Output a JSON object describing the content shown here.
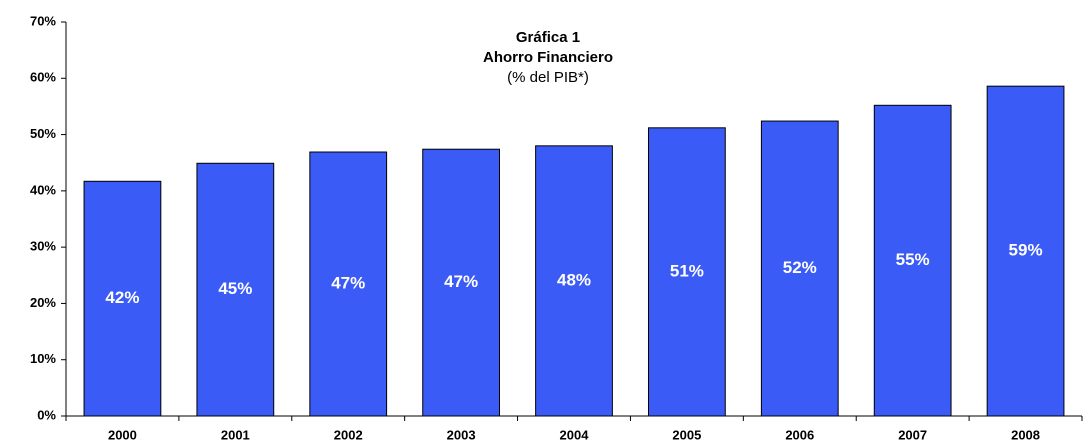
{
  "chart_data": {
    "type": "bar",
    "title": [
      "Gráfica 1",
      "Ahorro Financiero",
      "(% del PIB*)"
    ],
    "categories": [
      "2000",
      "2001",
      "2002",
      "2003",
      "2004",
      "2005",
      "2006",
      "2007",
      "2008"
    ],
    "values": [
      41.7,
      44.9,
      46.9,
      47.4,
      48.0,
      51.2,
      52.4,
      55.2,
      58.6
    ],
    "value_labels": [
      "42%",
      "45%",
      "47%",
      "47%",
      "48%",
      "51%",
      "52%",
      "55%",
      "59%"
    ],
    "color": "#3b5bf6",
    "ylim": [
      0,
      70
    ],
    "yticks": [
      {
        "value": 0,
        "label": "0%"
      },
      {
        "value": 10,
        "label": "10%"
      },
      {
        "value": 20,
        "label": "20%"
      },
      {
        "value": 30,
        "label": "30%"
      },
      {
        "value": 40,
        "label": "40%"
      },
      {
        "value": 50,
        "label": "50%"
      },
      {
        "value": 60,
        "label": "60%"
      },
      {
        "value": 70,
        "label": "70%"
      }
    ]
  }
}
